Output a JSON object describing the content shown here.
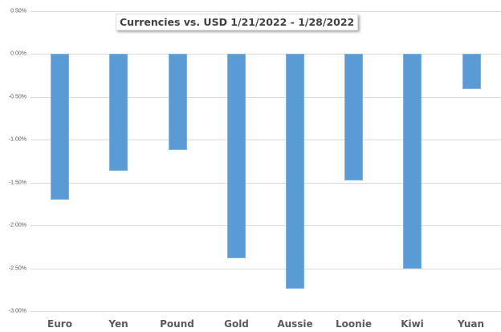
{
  "chart_data": {
    "type": "bar",
    "title": "Currencies vs. USD 1/21/2022 - 1/28/2022",
    "xlabel": "",
    "ylabel": "",
    "categories": [
      "Euro",
      "Yen",
      "Pound",
      "Gold",
      "Aussie",
      "Loonie",
      "Kiwi",
      "Yuan"
    ],
    "values": [
      -1.7,
      -1.37,
      -1.12,
      -2.39,
      -2.74,
      -1.48,
      -2.51,
      -0.41
    ],
    "value_unit": "%",
    "ylim": [
      -3.0,
      0.5
    ],
    "yticks": [
      0.5,
      0.0,
      -0.5,
      -1.0,
      -1.5,
      -2.0,
      -2.5,
      -3.0
    ],
    "ytick_labels": [
      "0.50%",
      "0.00%",
      "-0.50%",
      "-1.00%",
      "-1.50%",
      "-2.00%",
      "-2.50%",
      "-3.00%"
    ],
    "grid": true,
    "legend": null,
    "bar_color": "#5b9bd5"
  }
}
